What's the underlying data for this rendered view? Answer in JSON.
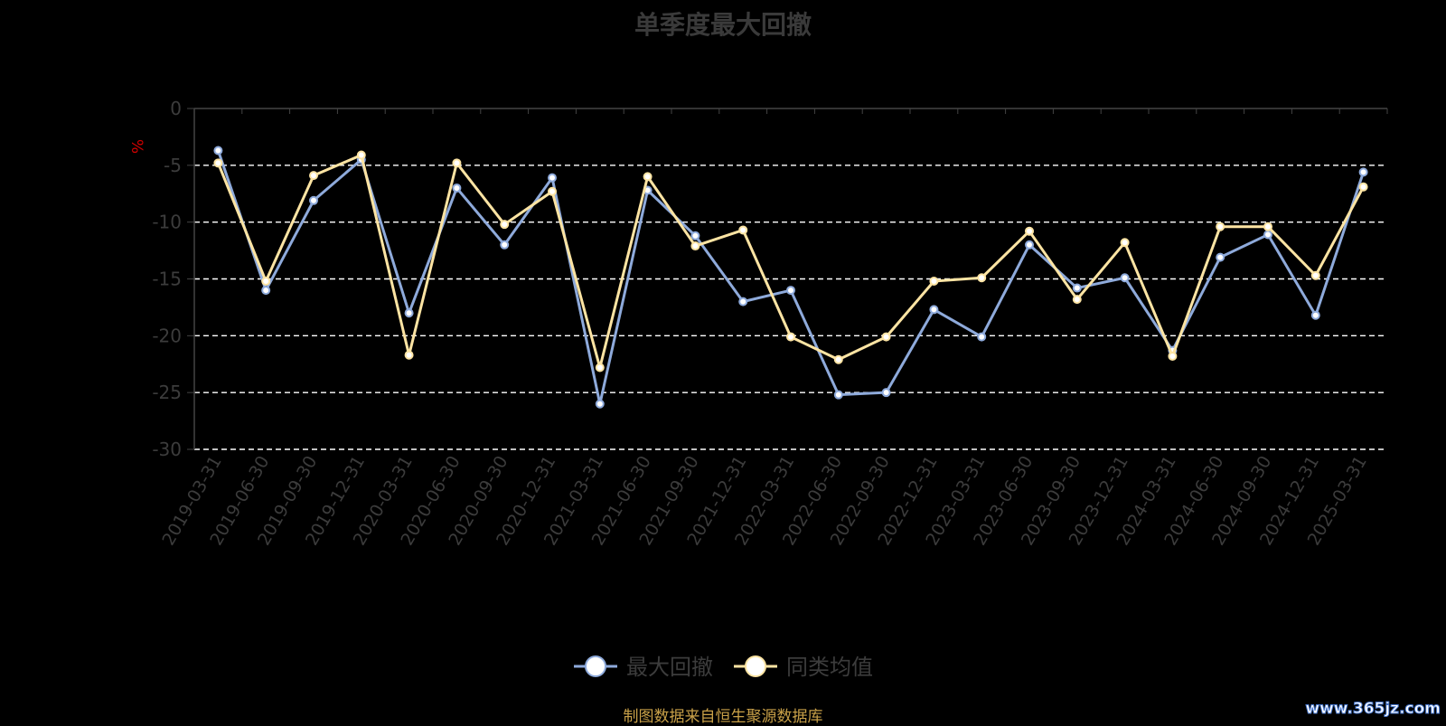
{
  "chart_data": {
    "type": "line",
    "title": "单季度最大回撤",
    "ylabel": "%",
    "ylim": [
      -30,
      0
    ],
    "yticks": [
      0,
      -5,
      -10,
      -15,
      -20,
      -25,
      -30
    ],
    "grid": true,
    "legend_position": "bottom-center",
    "categories": [
      "2019-03-31",
      "2019-06-30",
      "2019-09-30",
      "2019-12-31",
      "2020-03-31",
      "2020-06-30",
      "2020-09-30",
      "2020-12-31",
      "2021-03-31",
      "2021-06-30",
      "2021-09-30",
      "2021-12-31",
      "2022-03-31",
      "2022-06-30",
      "2022-09-30",
      "2022-12-31",
      "2023-03-31",
      "2023-06-30",
      "2023-09-30",
      "2023-12-31",
      "2024-03-31",
      "2024-06-30",
      "2024-09-30",
      "2024-12-31",
      "2025-03-31"
    ],
    "series": [
      {
        "name": "最大回撤",
        "color": "#8eaadb",
        "values": [
          -3.7,
          -16.0,
          -8.1,
          -4.5,
          -18.0,
          -7.0,
          -12.0,
          -6.1,
          -26.0,
          -7.2,
          -11.2,
          -17.0,
          -16.0,
          -25.2,
          -25.0,
          -17.7,
          -20.1,
          -12.0,
          -15.8,
          -14.9,
          -21.3,
          -13.1,
          -11.1,
          -18.2,
          -5.6
        ]
      },
      {
        "name": "同类均值",
        "color": "#fde4a3",
        "values": [
          -4.8,
          -15.2,
          -5.9,
          -4.1,
          -21.7,
          -4.8,
          -10.2,
          -7.3,
          -22.8,
          -6.0,
          -12.1,
          -10.7,
          -20.1,
          -22.1,
          -20.1,
          -15.2,
          -14.9,
          -10.8,
          -16.8,
          -11.8,
          -21.8,
          -10.4,
          -10.4,
          -14.7,
          -6.9
        ]
      }
    ]
  },
  "footer": "制图数据来自恒生聚源数据库",
  "watermark": "www.365jz.com"
}
